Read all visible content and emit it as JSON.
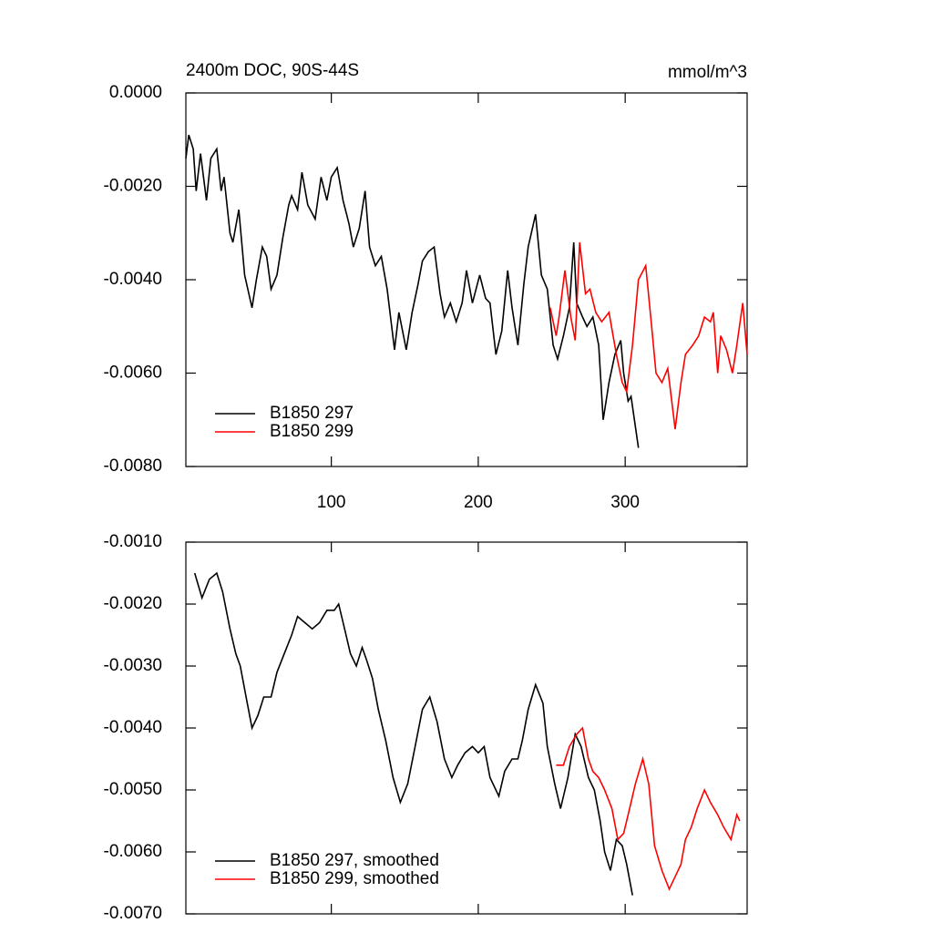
{
  "chart_data": [
    {
      "type": "line",
      "title": "2400m DOC, 90S-44S",
      "units": "mmol/m^3",
      "xlim": [
        1,
        383
      ],
      "xticks": [
        100,
        200,
        300
      ],
      "xtick_labels": true,
      "ylim": [
        -0.008,
        0
      ],
      "yticks": [
        {
          "value": -0.008,
          "label": "-0.0080"
        },
        {
          "value": -0.006,
          "label": "-0.0060"
        },
        {
          "value": -0.004,
          "label": "-0.0040"
        },
        {
          "value": -0.002,
          "label": "-0.0020"
        },
        {
          "value": 0,
          "label": "0.0000"
        }
      ],
      "legend": "lower left",
      "series": [
        {
          "name": "B1850 297",
          "color": "#000000",
          "x": [
            1,
            3,
            6,
            8,
            11,
            15,
            18,
            22,
            25,
            27,
            31,
            33,
            37,
            41,
            46,
            49,
            53,
            56,
            59,
            63,
            67,
            71,
            73,
            77,
            80,
            84,
            89,
            93,
            97,
            100,
            104,
            108,
            112,
            115,
            119,
            123,
            126,
            130,
            134,
            138,
            143,
            146,
            151,
            155,
            159,
            162,
            166,
            170,
            174,
            177,
            181,
            185,
            189,
            192,
            196,
            201,
            205,
            208,
            212,
            216,
            220,
            223,
            227,
            231,
            234,
            239,
            243,
            247,
            251,
            254,
            258,
            262,
            265,
            267,
            271,
            274,
            278,
            282,
            285,
            289,
            293,
            297,
            299,
            302,
            304,
            309
          ],
          "values": [
            -0.0014,
            -0.0009,
            -0.0012,
            -0.0021,
            -0.0013,
            -0.0023,
            -0.0014,
            -0.0012,
            -0.0021,
            -0.0018,
            -0.003,
            -0.0032,
            -0.0025,
            -0.0039,
            -0.0046,
            -0.004,
            -0.0033,
            -0.0035,
            -0.0042,
            -0.0039,
            -0.0031,
            -0.0024,
            -0.0022,
            -0.0025,
            -0.0017,
            -0.0024,
            -0.0027,
            -0.0018,
            -0.0023,
            -0.0018,
            -0.0016,
            -0.0023,
            -0.0028,
            -0.0033,
            -0.0029,
            -0.0021,
            -0.0033,
            -0.0037,
            -0.0035,
            -0.0042,
            -0.0055,
            -0.0047,
            -0.0055,
            -0.0047,
            -0.0041,
            -0.0036,
            -0.0034,
            -0.0033,
            -0.0043,
            -0.0048,
            -0.0045,
            -0.0049,
            -0.0045,
            -0.0038,
            -0.0045,
            -0.0039,
            -0.0044,
            -0.0045,
            -0.0056,
            -0.0051,
            -0.0038,
            -0.0046,
            -0.0054,
            -0.0041,
            -0.0033,
            -0.0026,
            -0.0039,
            -0.0042,
            -0.0054,
            -0.0057,
            -0.0052,
            -0.0046,
            -0.0032,
            -0.0045,
            -0.0048,
            -0.005,
            -0.0048,
            -0.0054,
            -0.007,
            -0.0062,
            -0.0056,
            -0.0053,
            -0.006,
            -0.0066,
            -0.0065,
            -0.0076
          ]
        },
        {
          "name": "B1850 299",
          "color": "#ff0000",
          "x": [
            249,
            253,
            255,
            259,
            263,
            266,
            269,
            273,
            276,
            280,
            284,
            289,
            294,
            298,
            301,
            305,
            309,
            314,
            318,
            321,
            325,
            329,
            334,
            338,
            341,
            346,
            350,
            354,
            358,
            360,
            363,
            365,
            369,
            373,
            376,
            380,
            383
          ],
          "values": [
            -0.0046,
            -0.0052,
            -0.0048,
            -0.0038,
            -0.0048,
            -0.0053,
            -0.0032,
            -0.0043,
            -0.0042,
            -0.0047,
            -0.0049,
            -0.0047,
            -0.0056,
            -0.0062,
            -0.0064,
            -0.0054,
            -0.004,
            -0.0037,
            -0.005,
            -0.006,
            -0.0062,
            -0.0059,
            -0.0072,
            -0.0062,
            -0.0056,
            -0.0054,
            -0.0052,
            -0.0048,
            -0.0049,
            -0.0047,
            -0.006,
            -0.0052,
            -0.0055,
            -0.006,
            -0.0054,
            -0.0045,
            -0.0056
          ]
        }
      ]
    },
    {
      "type": "line",
      "xlim": [
        1,
        383
      ],
      "xticks": [
        100,
        200,
        300
      ],
      "xtick_labels": false,
      "ylim": [
        -0.007,
        -0.001
      ],
      "yticks": [
        {
          "value": -0.007,
          "label": "-0.0070"
        },
        {
          "value": -0.006,
          "label": "-0.0060"
        },
        {
          "value": -0.005,
          "label": "-0.0050"
        },
        {
          "value": -0.004,
          "label": "-0.0040"
        },
        {
          "value": -0.003,
          "label": "-0.0030"
        },
        {
          "value": -0.002,
          "label": "-0.0020"
        },
        {
          "value": -0.001,
          "label": "-0.0010"
        }
      ],
      "legend": "lower left",
      "series": [
        {
          "name": "B1850 297, smoothed",
          "color": "#000000",
          "x": [
            7,
            12,
            17,
            22,
            26,
            31,
            35,
            38,
            42,
            46,
            50,
            54,
            59,
            63,
            68,
            73,
            77,
            82,
            87,
            92,
            97,
            102,
            105,
            109,
            113,
            117,
            121,
            124,
            128,
            132,
            137,
            142,
            147,
            152,
            157,
            162,
            167,
            172,
            177,
            182,
            186,
            191,
            196,
            200,
            204,
            208,
            214,
            218,
            223,
            227,
            230,
            234,
            239,
            244,
            247,
            252,
            256,
            261,
            266,
            270,
            275,
            279,
            283,
            286,
            290,
            294,
            298,
            301,
            305
          ],
          "values": [
            -0.0015,
            -0.0019,
            -0.0016,
            -0.0015,
            -0.0018,
            -0.0024,
            -0.0028,
            -0.003,
            -0.0035,
            -0.004,
            -0.0038,
            -0.0035,
            -0.0035,
            -0.0031,
            -0.0028,
            -0.0025,
            -0.0022,
            -0.0023,
            -0.0024,
            -0.0023,
            -0.0021,
            -0.0021,
            -0.002,
            -0.0024,
            -0.0028,
            -0.003,
            -0.0027,
            -0.0029,
            -0.0032,
            -0.0037,
            -0.0042,
            -0.0048,
            -0.0052,
            -0.0049,
            -0.0043,
            -0.0037,
            -0.0035,
            -0.0039,
            -0.0045,
            -0.0048,
            -0.0046,
            -0.0044,
            -0.0043,
            -0.0044,
            -0.0043,
            -0.0048,
            -0.0051,
            -0.0047,
            -0.0045,
            -0.0045,
            -0.0042,
            -0.0037,
            -0.0033,
            -0.0036,
            -0.0043,
            -0.0049,
            -0.0053,
            -0.0048,
            -0.0041,
            -0.0043,
            -0.0048,
            -0.005,
            -0.0055,
            -0.006,
            -0.0063,
            -0.0058,
            -0.0059,
            -0.0062,
            -0.0067
          ]
        },
        {
          "name": "B1850 299, smoothed",
          "color": "#ff0000",
          "x": [
            253,
            258,
            262,
            267,
            271,
            275,
            278,
            282,
            286,
            291,
            295,
            299,
            302,
            307,
            312,
            316,
            320,
            325,
            330,
            334,
            338,
            341,
            345,
            349,
            354,
            358,
            363,
            367,
            372,
            376,
            378
          ],
          "values": [
            -0.0046,
            -0.0046,
            -0.0043,
            -0.0041,
            -0.004,
            -0.0045,
            -0.0047,
            -0.0048,
            -0.005,
            -0.0053,
            -0.0058,
            -0.0057,
            -0.0054,
            -0.0049,
            -0.0045,
            -0.0049,
            -0.0059,
            -0.0063,
            -0.0066,
            -0.0064,
            -0.0062,
            -0.0058,
            -0.0056,
            -0.0053,
            -0.005,
            -0.0052,
            -0.0054,
            -0.0056,
            -0.0058,
            -0.0054,
            -0.0055
          ]
        }
      ]
    }
  ]
}
